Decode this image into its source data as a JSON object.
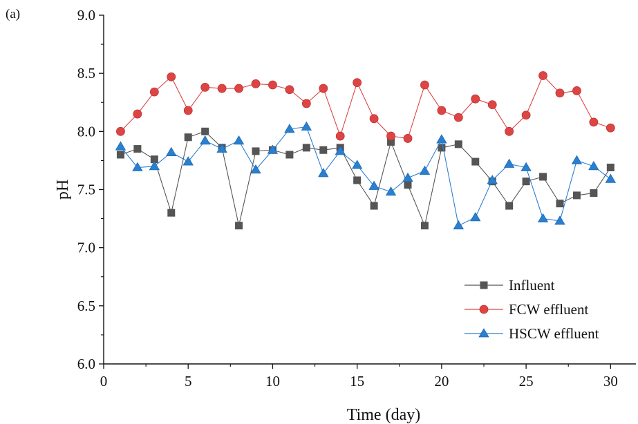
{
  "panel_label": "(a)",
  "chart_data": {
    "type": "line",
    "title": "",
    "xlabel": "Time (day)",
    "ylabel": "pH",
    "xlim": [
      0,
      31.5
    ],
    "ylim": [
      6.0,
      9.0
    ],
    "xticks": [
      0,
      5,
      10,
      15,
      20,
      25,
      30
    ],
    "xtick_labels": [
      "0",
      "5",
      "10",
      "15",
      "20",
      "25",
      "30"
    ],
    "yticks": [
      6.0,
      6.5,
      7.0,
      7.5,
      8.0,
      8.5,
      9.0
    ],
    "ytick_labels": [
      "6.0",
      "6.5",
      "7.0",
      "7.5",
      "8.0",
      "8.5",
      "9.0"
    ],
    "grid": false,
    "legend_position": "bottom-right",
    "x": [
      1,
      2,
      3,
      4,
      5,
      6,
      7,
      8,
      9,
      10,
      11,
      12,
      13,
      14,
      15,
      16,
      17,
      18,
      19,
      20,
      21,
      22,
      23,
      24,
      25,
      26,
      27,
      28,
      29,
      30
    ],
    "series": [
      {
        "name": "Influent",
        "color": "#555555",
        "marker": "square",
        "values": [
          7.8,
          7.85,
          7.76,
          7.3,
          7.95,
          8.0,
          7.86,
          7.19,
          7.83,
          7.84,
          7.8,
          7.86,
          7.84,
          7.86,
          7.58,
          7.36,
          7.91,
          7.54,
          7.19,
          7.86,
          7.89,
          7.74,
          7.57,
          7.36,
          7.57,
          7.61,
          7.38,
          7.45,
          7.47,
          7.69
        ]
      },
      {
        "name": "FCW effluent",
        "color": "#dd4545",
        "marker": "circle",
        "values": [
          8.0,
          8.15,
          8.34,
          8.47,
          8.18,
          8.38,
          8.37,
          8.37,
          8.41,
          8.4,
          8.36,
          8.24,
          8.37,
          7.96,
          8.42,
          8.11,
          7.96,
          7.94,
          8.4,
          8.18,
          8.12,
          8.28,
          8.23,
          8.0,
          8.14,
          8.48,
          8.33,
          8.35,
          8.08,
          8.03
        ]
      },
      {
        "name": "HSCW effluent",
        "color": "#2b7fcf",
        "marker": "triangle",
        "values": [
          7.87,
          7.69,
          7.7,
          7.82,
          7.74,
          7.92,
          7.85,
          7.92,
          7.67,
          7.84,
          8.02,
          8.04,
          7.64,
          7.83,
          7.71,
          7.53,
          7.48,
          7.6,
          7.66,
          7.93,
          7.19,
          7.26,
          7.58,
          7.72,
          7.69,
          7.25,
          7.23,
          7.75,
          7.7,
          7.59
        ]
      }
    ]
  }
}
